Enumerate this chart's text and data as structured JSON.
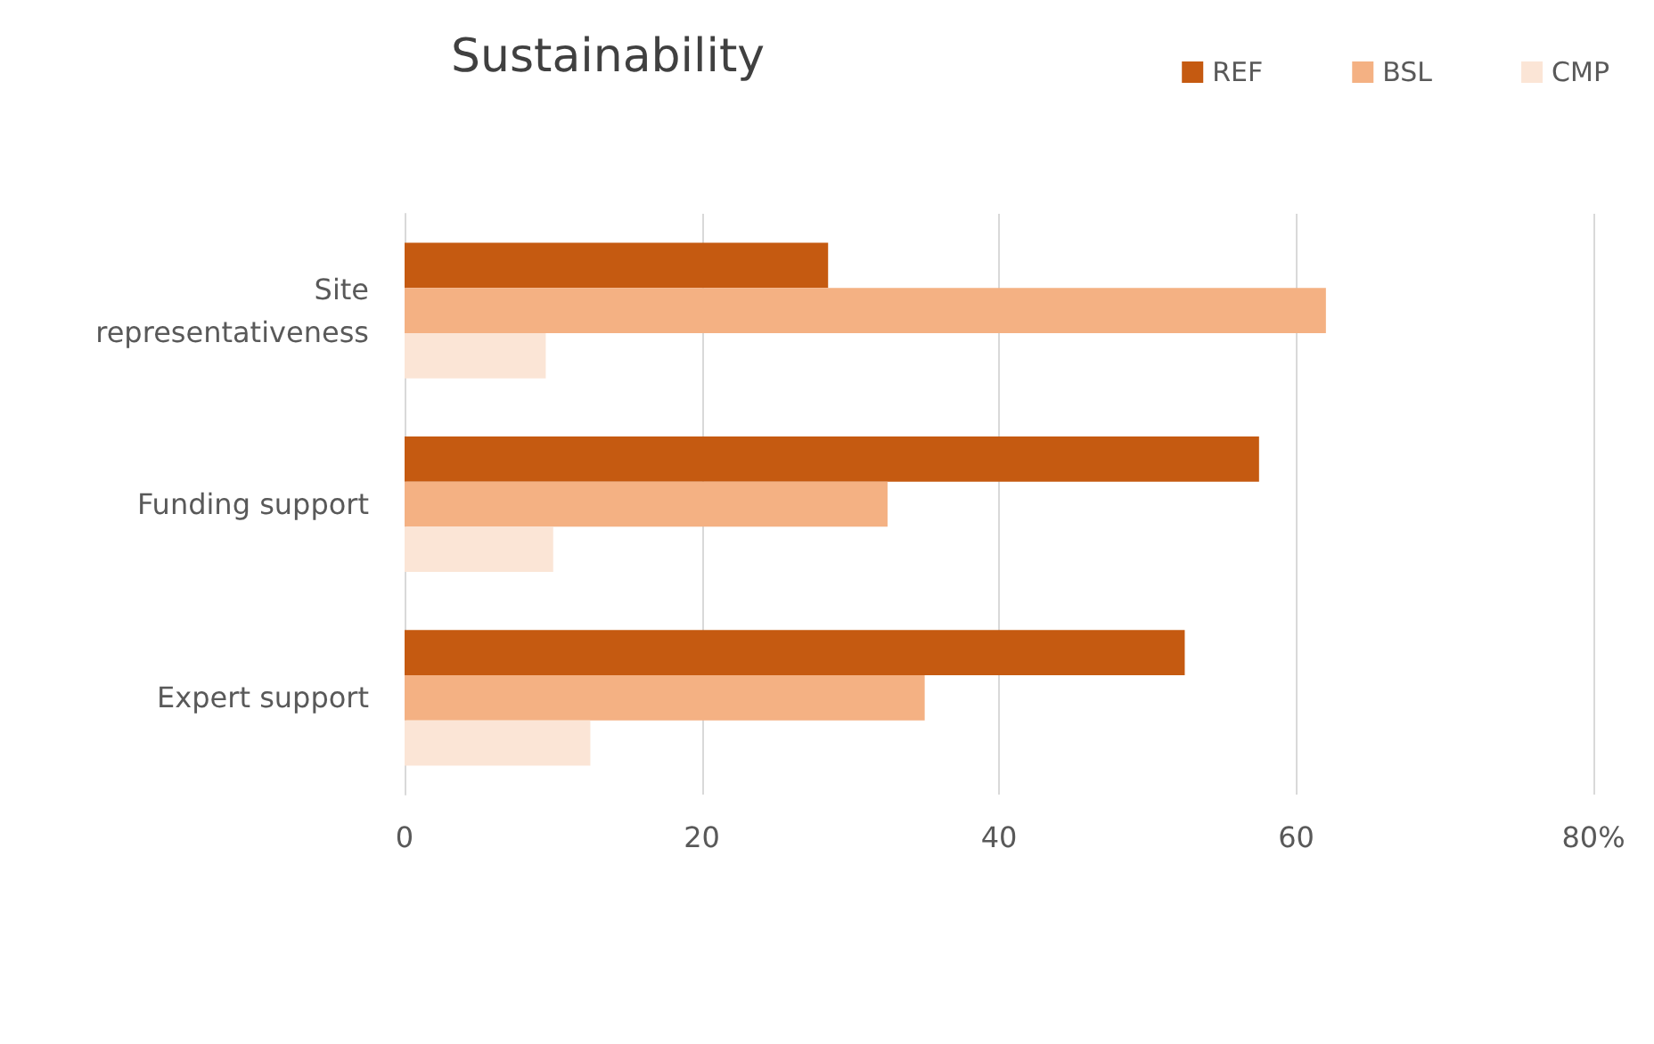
{
  "chart_data": {
    "type": "bar",
    "orientation": "horizontal",
    "title": "Sustainability",
    "categories": [
      "Site\nrepresentativeness",
      "Funding support",
      "Expert support"
    ],
    "series": [
      {
        "name": "REF",
        "color": "#c55a11",
        "values": [
          28.5,
          57.5,
          52.5
        ]
      },
      {
        "name": "BSL",
        "color": "#f4b183",
        "values": [
          62,
          32.5,
          35
        ]
      },
      {
        "name": "CMP",
        "color": "#fbe5d6",
        "values": [
          9.5,
          10,
          12.5
        ]
      }
    ],
    "xlim": [
      0,
      80
    ],
    "xticks": [
      0,
      20,
      40,
      60,
      {
        "value": 80,
        "label": "80%"
      }
    ],
    "grid": "x",
    "legend": "top right"
  }
}
